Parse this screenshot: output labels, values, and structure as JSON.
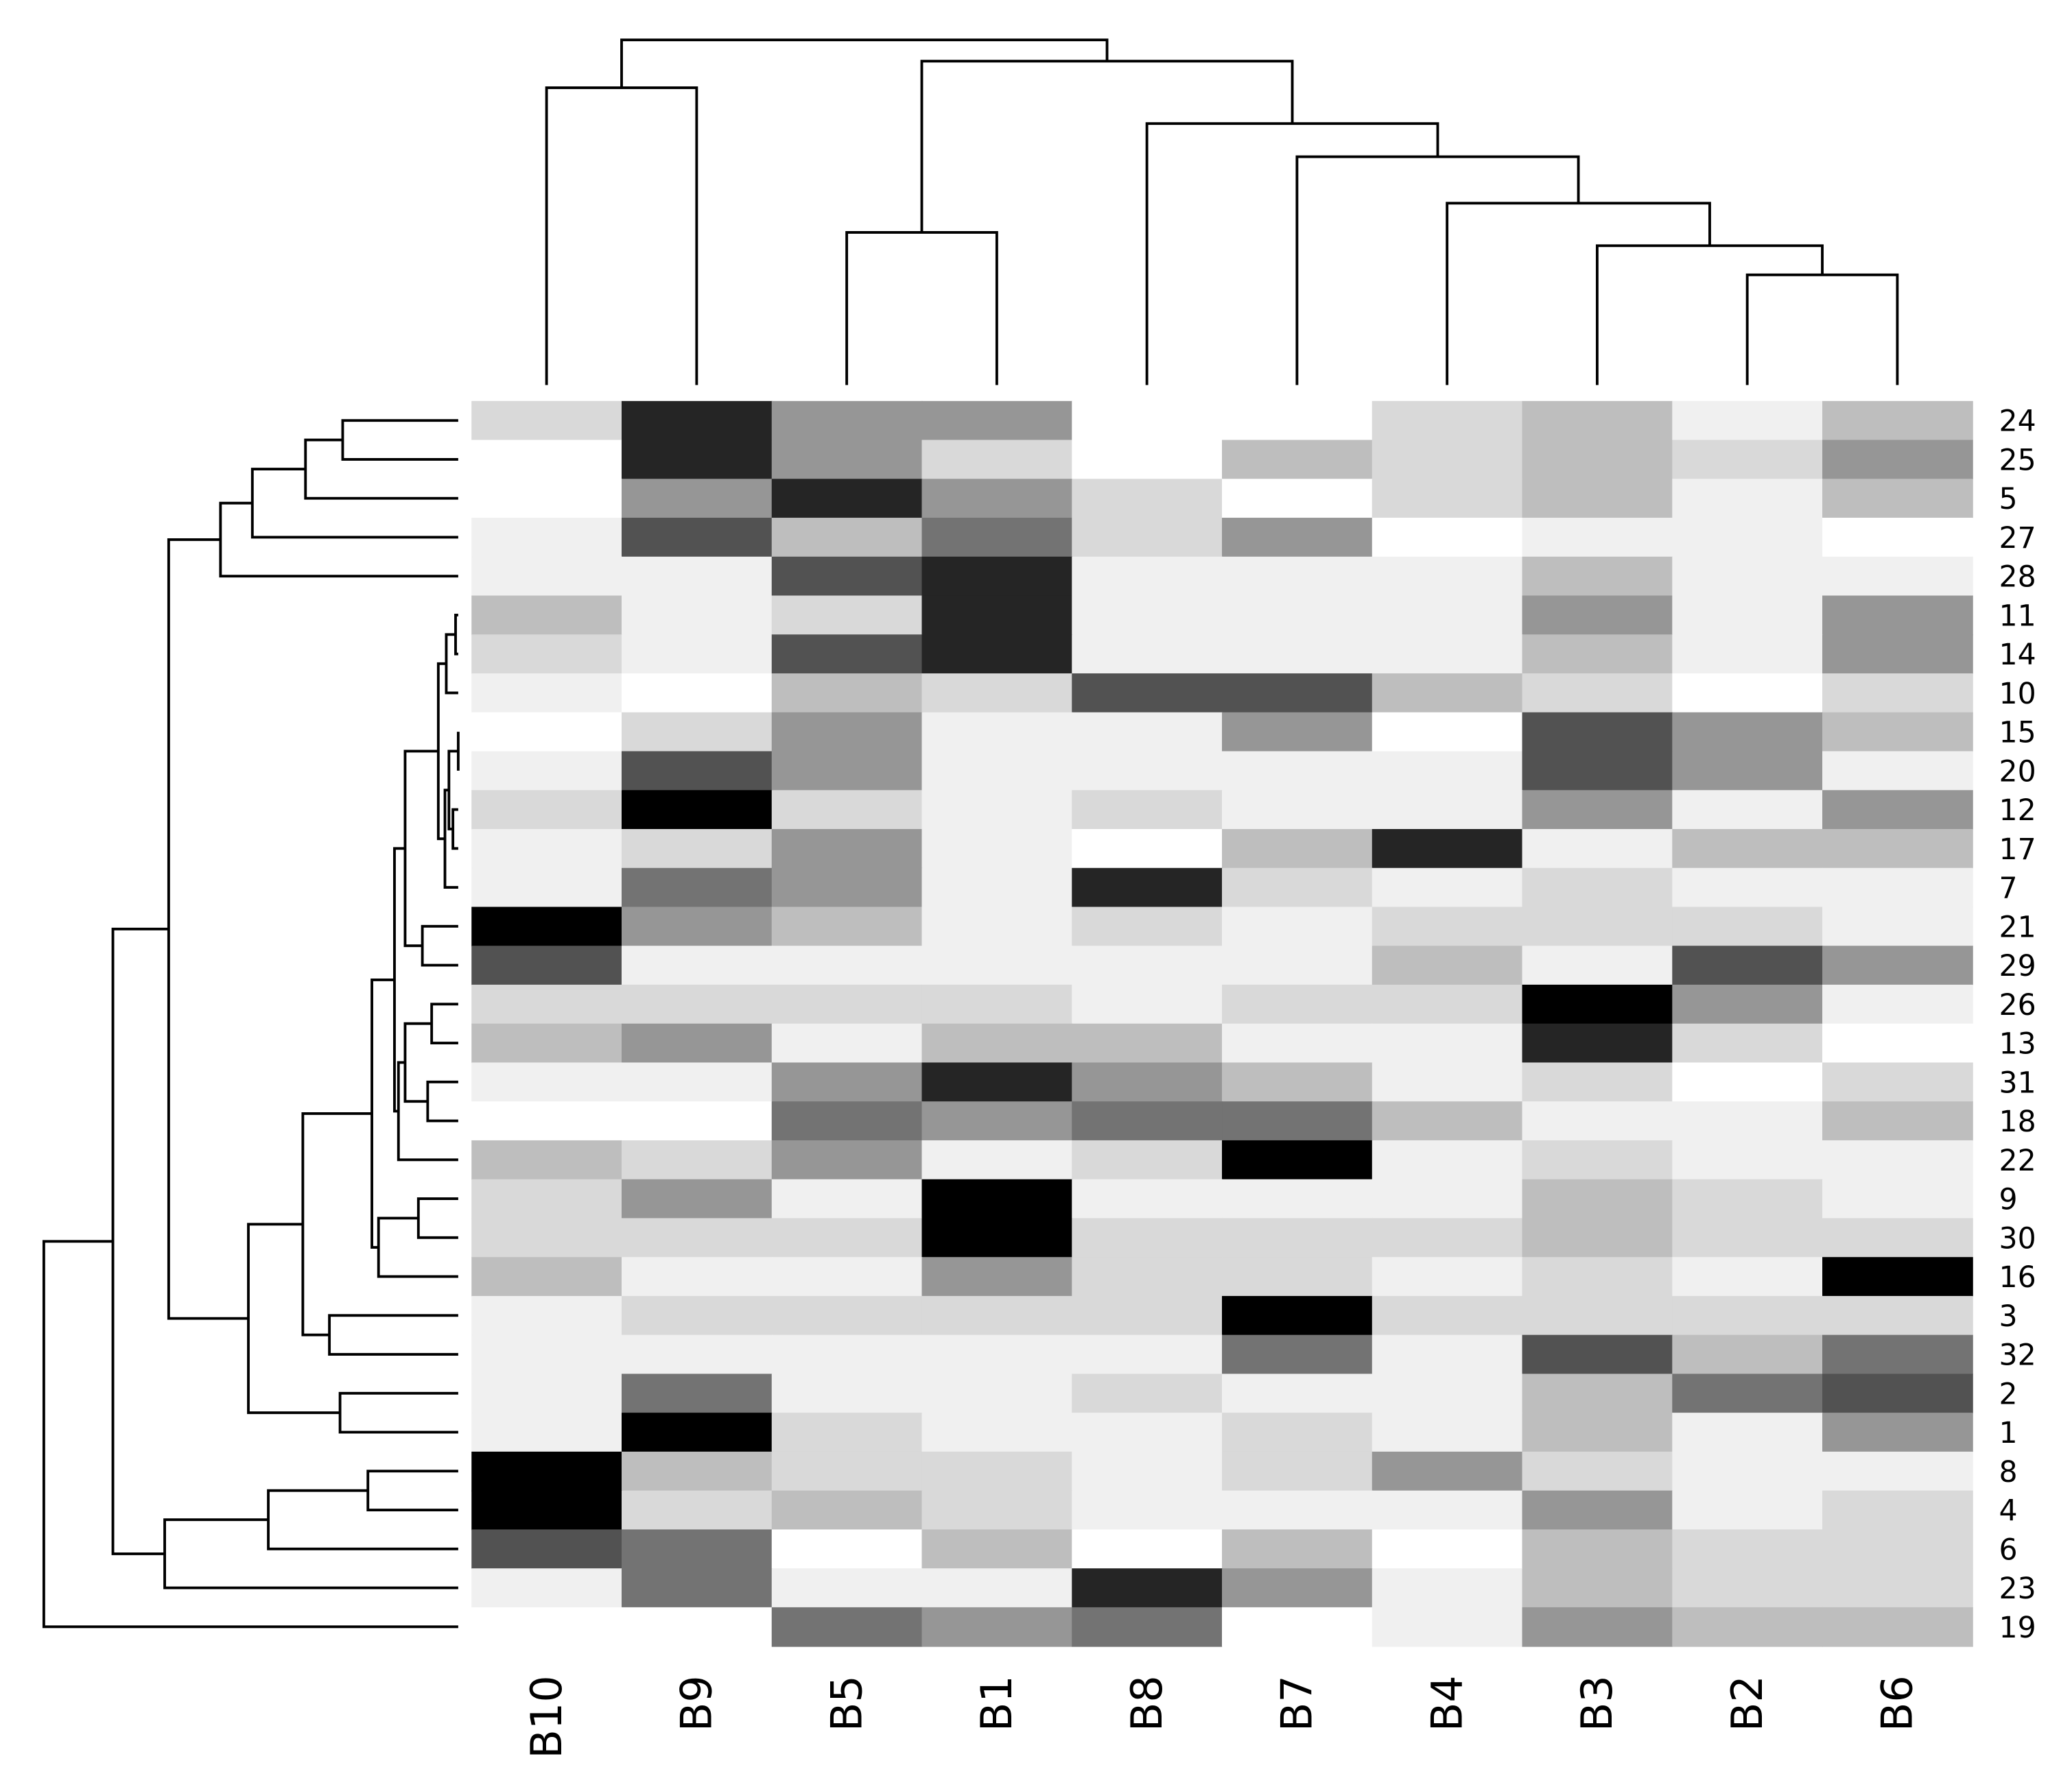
{
  "chart_data": {
    "type": "heatmap",
    "columns": [
      "B10",
      "B9",
      "B5",
      "B1",
      "B8",
      "B7",
      "B4",
      "B3",
      "B2",
      "B6"
    ],
    "rows": [
      "24",
      "25",
      "5",
      "27",
      "28",
      "11",
      "14",
      "10",
      "15",
      "20",
      "12",
      "17",
      "7",
      "21",
      "29",
      "26",
      "13",
      "31",
      "18",
      "22",
      "9",
      "30",
      "16",
      "3",
      "32",
      "2",
      "1",
      "8",
      "4",
      "6",
      "23",
      "19"
    ],
    "colorscale": [
      "#ffffff",
      "#f0f0f0",
      "#d9d9d9",
      "#bebebe",
      "#969696",
      "#737373",
      "#525252",
      "#252525",
      "#000000"
    ],
    "values": [
      [
        2,
        7,
        4,
        4,
        0,
        0,
        2,
        3,
        1,
        3
      ],
      [
        0,
        7,
        4,
        2,
        0,
        3,
        2,
        3,
        2,
        4
      ],
      [
        0,
        4,
        7,
        4,
        2,
        0,
        2,
        3,
        1,
        3
      ],
      [
        1,
        6,
        3,
        5,
        2,
        4,
        0,
        1,
        1,
        0
      ],
      [
        1,
        1,
        6,
        7,
        1,
        1,
        1,
        3,
        1,
        1
      ],
      [
        3,
        1,
        2,
        7,
        1,
        1,
        1,
        4,
        1,
        4
      ],
      [
        2,
        1,
        6,
        7,
        1,
        1,
        1,
        3,
        1,
        4
      ],
      [
        1,
        0,
        3,
        2,
        6,
        6,
        3,
        2,
        0,
        2
      ],
      [
        0,
        2,
        4,
        1,
        1,
        4,
        0,
        6,
        4,
        3
      ],
      [
        1,
        6,
        4,
        1,
        1,
        1,
        1,
        6,
        4,
        1
      ],
      [
        2,
        8,
        2,
        1,
        2,
        1,
        1,
        4,
        1,
        4
      ],
      [
        1,
        2,
        4,
        1,
        0,
        3,
        7,
        1,
        3,
        3
      ],
      [
        1,
        5,
        4,
        1,
        7,
        2,
        1,
        2,
        1,
        1
      ],
      [
        8,
        4,
        3,
        1,
        2,
        1,
        2,
        2,
        2,
        1
      ],
      [
        6,
        1,
        1,
        1,
        1,
        1,
        3,
        1,
        6,
        4
      ],
      [
        2,
        2,
        2,
        2,
        1,
        2,
        2,
        8,
        4,
        1
      ],
      [
        3,
        4,
        1,
        3,
        3,
        1,
        1,
        7,
        2,
        0
      ],
      [
        1,
        1,
        4,
        7,
        4,
        3,
        1,
        2,
        0,
        2
      ],
      [
        0,
        0,
        5,
        4,
        5,
        5,
        3,
        1,
        1,
        3
      ],
      [
        3,
        2,
        4,
        1,
        2,
        8,
        1,
        2,
        1,
        1
      ],
      [
        2,
        4,
        1,
        8,
        1,
        1,
        1,
        3,
        2,
        1
      ],
      [
        2,
        2,
        2,
        8,
        2,
        2,
        2,
        3,
        2,
        2
      ],
      [
        3,
        1,
        1,
        4,
        2,
        2,
        1,
        2,
        1,
        8
      ],
      [
        1,
        2,
        2,
        2,
        2,
        8,
        2,
        2,
        2,
        2
      ],
      [
        1,
        1,
        1,
        1,
        1,
        5,
        1,
        6,
        3,
        5
      ],
      [
        1,
        5,
        1,
        1,
        2,
        1,
        1,
        3,
        5,
        6
      ],
      [
        1,
        8,
        2,
        1,
        1,
        2,
        1,
        3,
        1,
        4
      ],
      [
        8,
        3,
        2,
        2,
        1,
        2,
        4,
        2,
        1,
        1
      ],
      [
        8,
        2,
        3,
        2,
        1,
        1,
        1,
        4,
        1,
        2
      ],
      [
        6,
        5,
        0,
        3,
        0,
        3,
        0,
        3,
        2,
        2
      ],
      [
        1,
        5,
        1,
        1,
        7,
        4,
        1,
        3,
        2,
        2
      ],
      [
        0,
        0,
        5,
        4,
        5,
        0,
        1,
        4,
        3,
        3
      ]
    ]
  }
}
